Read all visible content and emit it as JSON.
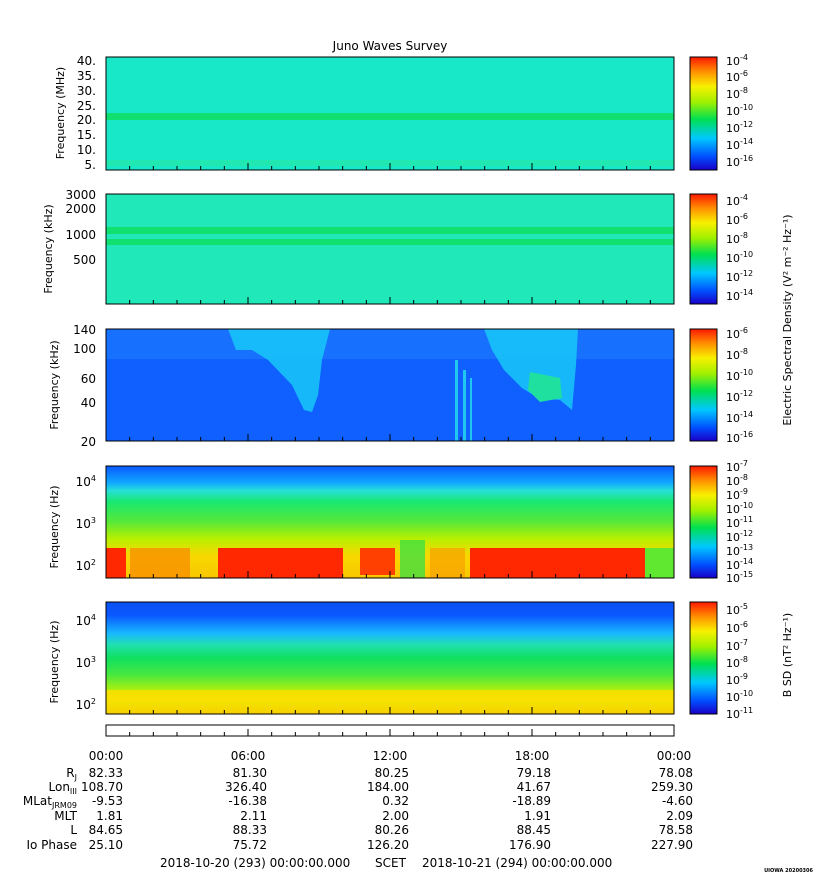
{
  "title": "Juno Waves Survey",
  "stamp": "UIOWA 20200306",
  "colors": {
    "cmap": [
      "#1a00c8",
      "#0050ff",
      "#00c8ff",
      "#00e050",
      "#a0f000",
      "#f8f000",
      "#ff9000",
      "#ff1800"
    ]
  },
  "chart_data": [
    {
      "type": "heatmap",
      "ylabel": "Frequency (MHz)",
      "yticks": [
        "40.",
        "35.",
        "30.",
        "25.",
        "20.",
        "15.",
        "10.",
        "5."
      ],
      "colorbar": {
        "label": "",
        "ticks": [
          [
            "10",
            "-4"
          ],
          [
            "10",
            "-6"
          ],
          [
            "10",
            "-8"
          ],
          [
            "10",
            "-10"
          ],
          [
            "10",
            "-12"
          ],
          [
            "10",
            "-14"
          ],
          [
            "10",
            "-16"
          ]
        ]
      }
    },
    {
      "type": "heatmap",
      "ylabel": "Frequency (kHz)",
      "yticks": [
        "3000",
        "2000",
        "1000",
        "500"
      ],
      "colorbar": {
        "label": "",
        "ticks": [
          [
            "10",
            "-4"
          ],
          [
            "10",
            "-6"
          ],
          [
            "10",
            "-8"
          ],
          [
            "10",
            "-10"
          ],
          [
            "10",
            "-12"
          ],
          [
            "10",
            "-14"
          ]
        ]
      }
    },
    {
      "type": "heatmap",
      "ylabel": "Frequency (kHz)",
      "yticks": [
        "140",
        "100",
        "60",
        "40",
        "20"
      ],
      "colorbar": {
        "label": "Electric Spectral Density (V² m⁻² Hz⁻¹)",
        "ticks": [
          [
            "10",
            "-6"
          ],
          [
            "10",
            "-8"
          ],
          [
            "10",
            "-10"
          ],
          [
            "10",
            "-12"
          ],
          [
            "10",
            "-14"
          ],
          [
            "10",
            "-16"
          ]
        ]
      }
    },
    {
      "type": "heatmap",
      "ylabel": "Frequency (Hz)",
      "yticks": [
        [
          "10",
          "4"
        ],
        [
          "10",
          "3"
        ],
        [
          "10",
          "2"
        ]
      ],
      "colorbar": {
        "label": "",
        "ticks": [
          [
            "10",
            "-7"
          ],
          [
            "10",
            "-8"
          ],
          [
            "10",
            "-9"
          ],
          [
            "10",
            "-10"
          ],
          [
            "10",
            "-11"
          ],
          [
            "10",
            "-12"
          ],
          [
            "10",
            "-13"
          ],
          [
            "10",
            "-14"
          ],
          [
            "10",
            "-15"
          ]
        ]
      }
    },
    {
      "type": "heatmap",
      "ylabel": "Frequency (Hz)",
      "yticks": [
        [
          "10",
          "4"
        ],
        [
          "10",
          "3"
        ],
        [
          "10",
          "2"
        ]
      ],
      "colorbar": {
        "label": "B SD (nT² Hz⁻¹)",
        "ticks": [
          [
            "10",
            "-5"
          ],
          [
            "10",
            "-6"
          ],
          [
            "10",
            "-7"
          ],
          [
            "10",
            "-8"
          ],
          [
            "10",
            "-9"
          ],
          [
            "10",
            "-10"
          ],
          [
            "10",
            "-11"
          ]
        ]
      }
    }
  ],
  "time_axis": {
    "labels": [
      "00:00",
      "06:00",
      "12:00",
      "18:00",
      "00:00"
    ]
  },
  "ephemeris": [
    {
      "label": "R",
      "sub": "J",
      "values": [
        "82.33",
        "81.30",
        "80.25",
        "79.18",
        "78.08"
      ]
    },
    {
      "label": "Lon",
      "sub": "III",
      "values": [
        "108.70",
        "326.40",
        "184.00",
        "41.67",
        "259.30"
      ]
    },
    {
      "label": "MLat",
      "sub": "JRM09",
      "values": [
        "-9.53",
        "-16.38",
        "0.32",
        "-18.89",
        "-4.60"
      ]
    },
    {
      "label": "MLT",
      "sub": "",
      "values": [
        "1.81",
        "2.11",
        "2.00",
        "1.91",
        "2.09"
      ]
    },
    {
      "label": "L",
      "sub": "",
      "values": [
        "84.65",
        "88.33",
        "80.26",
        "88.45",
        "78.58"
      ]
    },
    {
      "label": "Io Phase",
      "sub": "",
      "values": [
        "25.10",
        "75.72",
        "126.20",
        "176.90",
        "227.90"
      ]
    }
  ],
  "footer": {
    "start": "2018-10-20 (293) 00:00:00.000",
    "scet": "SCET",
    "end": "2018-10-21 (294) 00:00:00.000"
  }
}
